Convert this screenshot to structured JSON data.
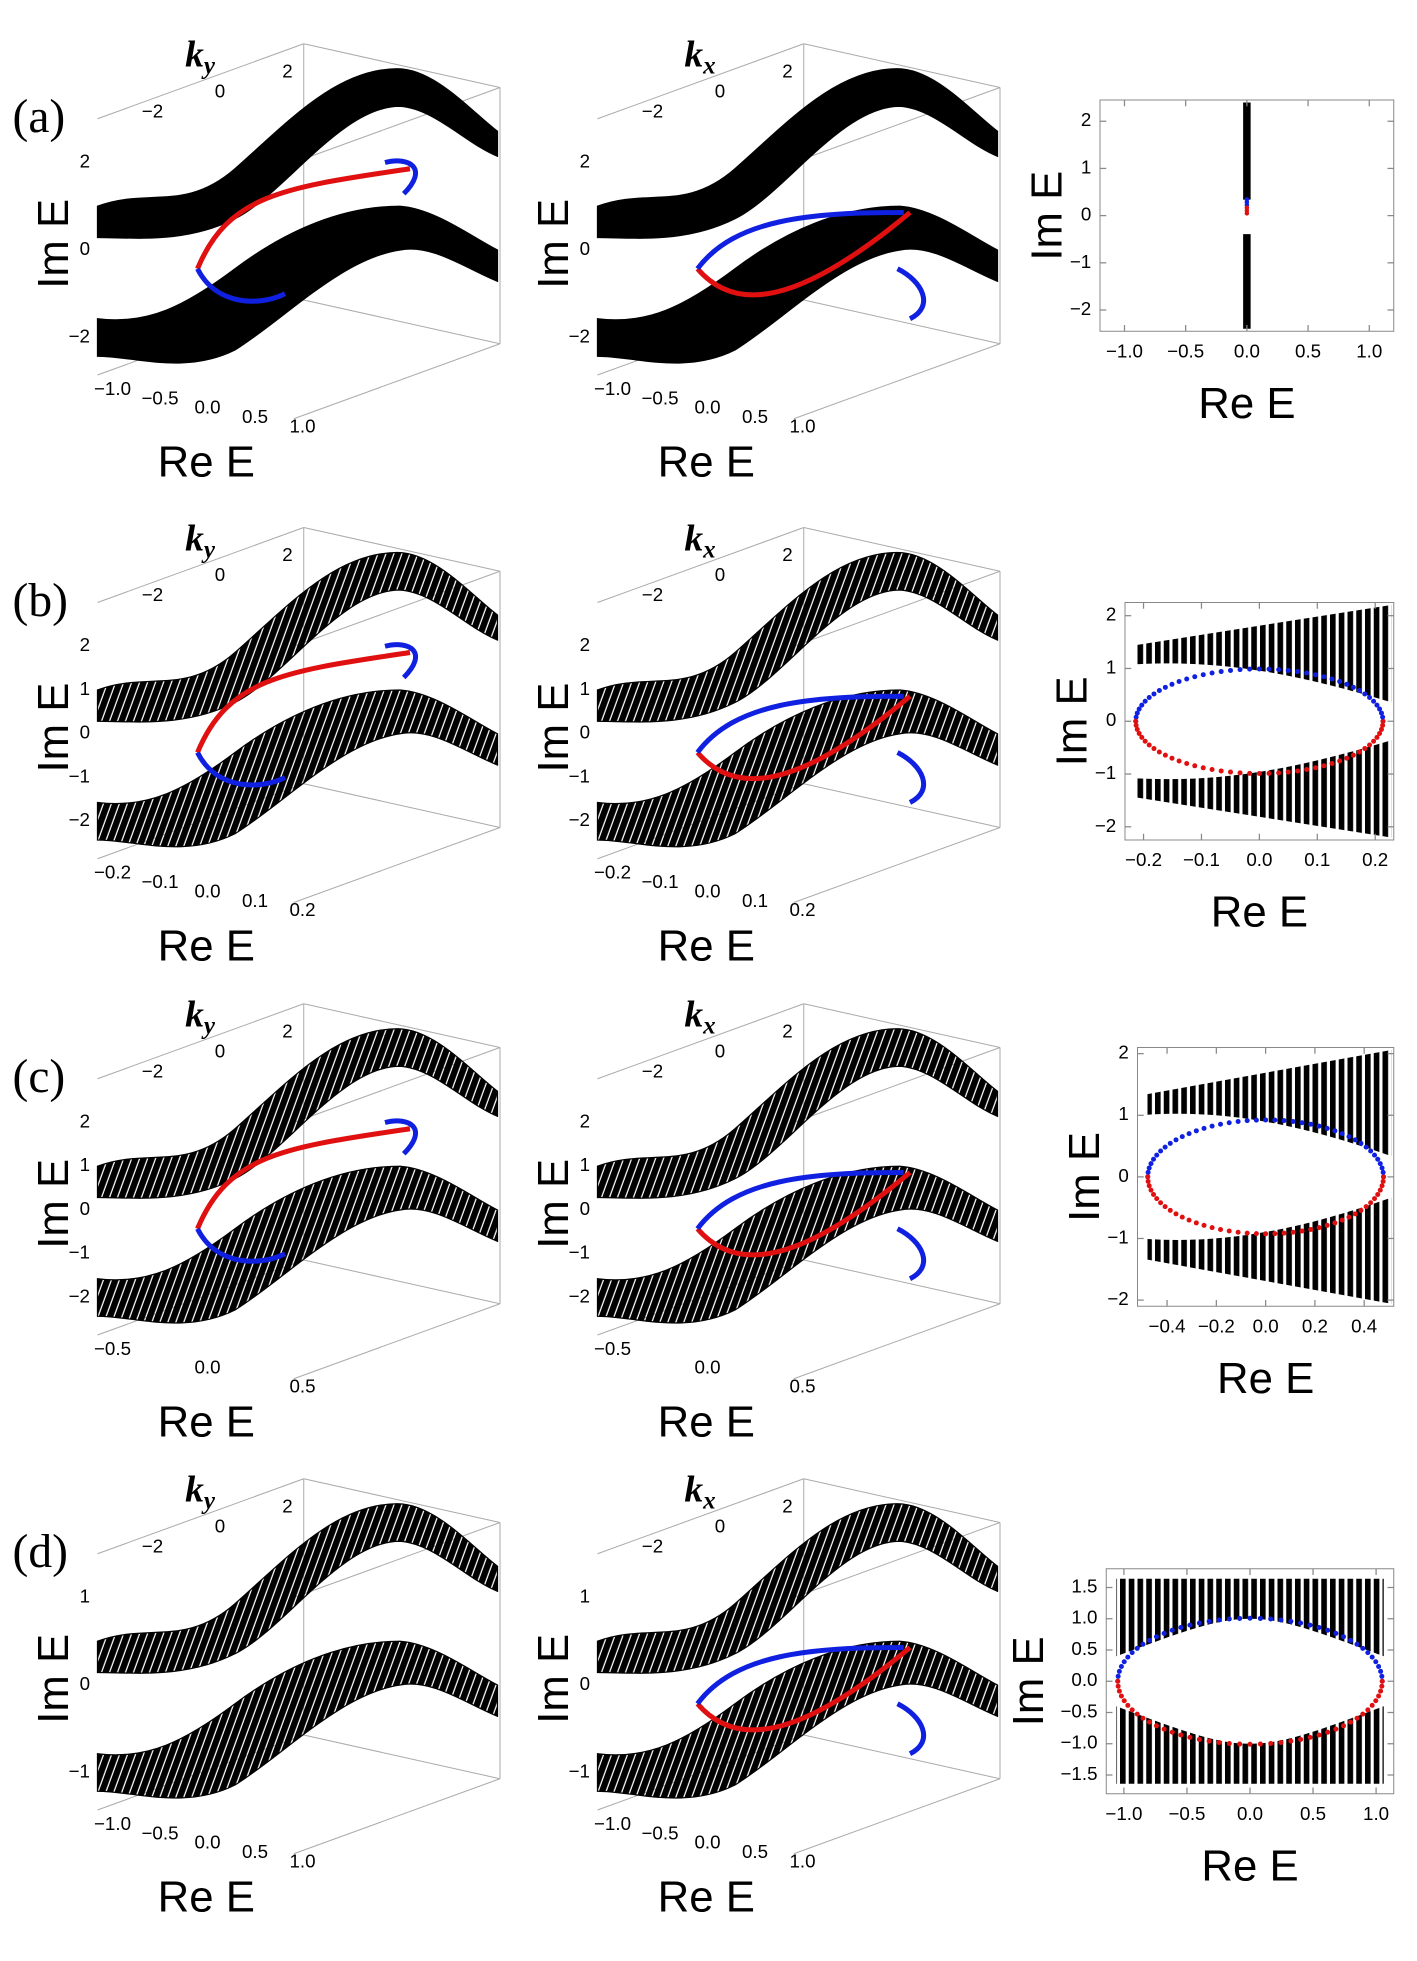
{
  "panels": [
    {
      "label": "(a)",
      "left": {
        "k": "k",
        "k_sub": "y",
        "k_ticks": [
          {
            "value": -2,
            "label": "−2"
          },
          0,
          2
        ],
        "z_label": "Im E",
        "z_ticks": [
          {
            "value": -2,
            "label": "−2"
          },
          0,
          2
        ],
        "x_label": "Re E",
        "x_ticks": [
          {
            "value": -1,
            "label": "−1.0"
          },
          {
            "value": -0.5,
            "label": "−0.5"
          },
          {
            "value": 0,
            "label": "0.0"
          },
          0.5,
          {
            "value": 1,
            "label": "1.0"
          }
        ]
      },
      "middle": {
        "k": "k",
        "k_sub": "x",
        "k_ticks": [
          {
            "value": -2,
            "label": "−2"
          },
          0,
          2
        ],
        "z_label": "Im E",
        "z_ticks": [
          {
            "value": -2,
            "label": "−2"
          },
          0,
          2
        ],
        "x_label": "Re E",
        "x_ticks": [
          {
            "value": -1,
            "label": "−1.0"
          },
          {
            "value": -0.5,
            "label": "−0.5"
          },
          {
            "value": 0,
            "label": "0.0"
          },
          0.5,
          {
            "value": 1,
            "label": "1.0"
          }
        ]
      },
      "right": {
        "y_label": "Im E",
        "x_label": "Re E",
        "xlim": [
          -1.2,
          1.2
        ],
        "ylim": [
          -2.45,
          2.45
        ],
        "xticks": [
          {
            "value": -1,
            "label": "−1.0"
          },
          {
            "value": -0.5,
            "label": "−0.5"
          },
          {
            "value": 0,
            "label": "0.0"
          },
          0.5,
          {
            "value": 1,
            "label": "1.0"
          }
        ],
        "yticks": [
          {
            "value": -2,
            "label": "−2"
          },
          {
            "value": -1,
            "label": "−1"
          },
          0,
          1,
          2
        ]
      }
    },
    {
      "label": "(b)",
      "left": {
        "k": "k",
        "k_sub": "y",
        "k_ticks": [
          {
            "value": -2,
            "label": "−2"
          },
          0,
          2
        ],
        "z_label": "Im E",
        "z_ticks": [
          {
            "value": -2,
            "label": "−2"
          },
          {
            "value": -1,
            "label": "−1"
          },
          0,
          1,
          2
        ],
        "x_label": "Re E",
        "x_ticks": [
          {
            "value": -0.2,
            "label": "−0.2"
          },
          {
            "value": -0.1,
            "label": "−0.1"
          },
          {
            "value": 0,
            "label": "0.0"
          },
          0.1,
          0.2
        ]
      },
      "middle": {
        "k": "k",
        "k_sub": "x",
        "k_ticks": [
          {
            "value": -2,
            "label": "−2"
          },
          0,
          2
        ],
        "z_label": "Im E",
        "z_ticks": [
          {
            "value": -2,
            "label": "−2"
          },
          {
            "value": -1,
            "label": "−1"
          },
          0,
          1,
          2
        ],
        "x_label": "Re E",
        "x_ticks": [
          {
            "value": -0.2,
            "label": "−0.2"
          },
          {
            "value": -0.1,
            "label": "−0.1"
          },
          {
            "value": 0,
            "label": "0.0"
          },
          0.1,
          0.2
        ]
      },
      "right": {
        "y_label": "Im E",
        "x_label": "Re E",
        "xlim": [
          -0.232,
          0.232
        ],
        "ylim": [
          -2.25,
          2.25
        ],
        "xticks": [
          {
            "value": -0.2,
            "label": "−0.2"
          },
          {
            "value": -0.1,
            "label": "−0.1"
          },
          {
            "value": 0,
            "label": "0.0"
          },
          0.1,
          0.2
        ],
        "yticks": [
          {
            "value": -2,
            "label": "−2"
          },
          {
            "value": -1,
            "label": "−1"
          },
          0,
          1,
          2
        ]
      }
    },
    {
      "label": "(c)",
      "left": {
        "k": "k",
        "k_sub": "y",
        "k_ticks": [
          {
            "value": -2,
            "label": "−2"
          },
          0,
          2
        ],
        "z_label": "Im E",
        "z_ticks": [
          {
            "value": -2,
            "label": "−2"
          },
          {
            "value": -1,
            "label": "−1"
          },
          0,
          1,
          2
        ],
        "x_label": "Re E",
        "x_ticks": [
          {
            "value": -0.5,
            "label": "−0.5"
          },
          {
            "value": 0,
            "label": "0.0"
          },
          0.5
        ]
      },
      "middle": {
        "k": "k",
        "k_sub": "x",
        "k_ticks": [
          {
            "value": -2,
            "label": "−2"
          },
          0,
          2
        ],
        "z_label": "Im E",
        "z_ticks": [
          {
            "value": -2,
            "label": "−2"
          },
          {
            "value": -1,
            "label": "−1"
          },
          0,
          1,
          2
        ],
        "x_label": "Re E",
        "x_ticks": [
          {
            "value": -0.5,
            "label": "−0.5"
          },
          {
            "value": 0,
            "label": "0.0"
          },
          0.5
        ]
      },
      "right": {
        "y_label": "Im E",
        "x_label": "Re E",
        "xlim": [
          -0.52,
          0.52
        ],
        "ylim": [
          -2.1,
          2.1
        ],
        "xticks": [
          {
            "value": -0.4,
            "label": "−0.4"
          },
          {
            "value": -0.2,
            "label": "−0.2"
          },
          {
            "value": 0,
            "label": "0.0"
          },
          0.2,
          0.4
        ],
        "yticks": [
          {
            "value": -2,
            "label": "−2"
          },
          {
            "value": -1,
            "label": "−1"
          },
          0,
          1,
          2
        ]
      }
    },
    {
      "label": "(d)",
      "left": {
        "k": "k",
        "k_sub": "y",
        "k_ticks": [
          {
            "value": -2,
            "label": "−2"
          },
          0,
          2
        ],
        "z_label": "Im E",
        "z_ticks": [
          {
            "value": -1,
            "label": "−1"
          },
          0,
          1
        ],
        "x_label": "Re E",
        "x_ticks": [
          {
            "value": -1,
            "label": "−1.0"
          },
          {
            "value": -0.5,
            "label": "−0.5"
          },
          {
            "value": 0,
            "label": "0.0"
          },
          0.5,
          {
            "value": 1,
            "label": "1.0"
          }
        ]
      },
      "middle": {
        "k": "k",
        "k_sub": "x",
        "k_ticks": [
          {
            "value": -2,
            "label": "−2"
          },
          0,
          2
        ],
        "z_label": "Im E",
        "z_ticks": [
          {
            "value": -1,
            "label": "−1"
          },
          0,
          1
        ],
        "x_label": "Re E",
        "x_ticks": [
          {
            "value": -1,
            "label": "−1.0"
          },
          {
            "value": -0.5,
            "label": "−0.5"
          },
          {
            "value": 0,
            "label": "0.0"
          },
          0.5,
          {
            "value": 1,
            "label": "1.0"
          }
        ]
      },
      "right": {
        "y_label": "Im E",
        "x_label": "Re E",
        "xlim": [
          -1.14,
          1.14
        ],
        "ylim": [
          -1.8,
          1.8
        ],
        "xticks": [
          {
            "value": -1,
            "label": "−1.0"
          },
          {
            "value": -0.5,
            "label": "−0.5"
          },
          {
            "value": 0,
            "label": "0.0"
          },
          0.5,
          {
            "value": 1,
            "label": "1.0"
          }
        ],
        "yticks": [
          {
            "value": -1.5,
            "label": "−1.5"
          },
          {
            "value": -1,
            "label": "−1.0"
          },
          {
            "value": -0.5,
            "label": "−0.5"
          },
          {
            "value": 0,
            "label": "0.0"
          },
          0.5,
          {
            "value": 1,
            "label": "1.0"
          },
          1.5
        ]
      }
    }
  ]
}
